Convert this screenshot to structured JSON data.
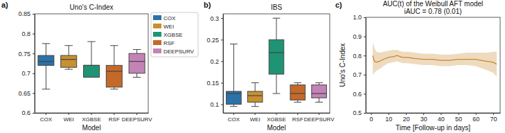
{
  "chart_data": [
    {
      "type": "box",
      "panel_label": "a)",
      "title": "Uno's C-Index",
      "x_label": "Model",
      "categories": [
        "COX",
        "WEI",
        "XGBSE",
        "RSF",
        "DEEPSURV"
      ],
      "colors": [
        "#2a72a8",
        "#c89030",
        "#1e9474",
        "#c4692a",
        "#c383b5"
      ],
      "whisker_low": [
        0.66,
        0.71,
        0.69,
        0.66,
        0.69
      ],
      "q1": [
        0.72,
        0.715,
        0.69,
        0.665,
        0.7
      ],
      "median": [
        0.73,
        0.735,
        0.72,
        0.705,
        0.73
      ],
      "q3": [
        0.745,
        0.745,
        0.72,
        0.72,
        0.75
      ],
      "whisker_high": [
        0.775,
        0.77,
        0.78,
        0.77,
        0.76
      ],
      "ylim": [
        0.6,
        0.85
      ],
      "yticks": [
        0.6,
        0.65,
        0.7,
        0.75,
        0.8,
        0.85
      ],
      "legend": "upper right"
    },
    {
      "type": "box",
      "panel_label": "b)",
      "title": "IBS",
      "x_label": "Model",
      "categories": [
        "COX",
        "WEI",
        "XGBSE",
        "RSF",
        "DEEPSURV"
      ],
      "colors": [
        "#2a72a8",
        "#c89030",
        "#1e9474",
        "#c4692a",
        "#c383b5"
      ],
      "whisker_low": [
        0.095,
        0.095,
        0.125,
        0.105,
        0.105
      ],
      "q1": [
        0.1,
        0.105,
        0.17,
        0.11,
        0.115
      ],
      "median": [
        0.125,
        0.12,
        0.22,
        0.125,
        0.125
      ],
      "q3": [
        0.13,
        0.13,
        0.25,
        0.145,
        0.145
      ],
      "whisker_high": [
        0.24,
        0.15,
        0.3,
        0.15,
        0.15
      ],
      "ylim": [
        0.08,
        0.31
      ],
      "yticks": [
        0.1,
        0.15,
        0.2,
        0.25,
        0.3
      ]
    },
    {
      "type": "line",
      "panel_label": "c)",
      "title": "AUC(t) of the Weibull AFT model",
      "subtitle": "iAUC = 0.78 (0.01)",
      "x_label": "Time [Follow-up in days]",
      "y_label": "Uno's C-Index",
      "x": [
        1,
        2,
        3,
        5,
        7,
        10,
        13,
        15,
        18,
        21,
        25,
        30,
        35,
        40,
        45,
        50,
        55,
        60,
        63,
        66,
        70,
        72
      ],
      "series": [
        {
          "color": "#c8872a",
          "values": [
            0.8,
            0.77,
            0.765,
            0.77,
            0.78,
            0.79,
            0.795,
            0.8,
            0.79,
            0.79,
            0.785,
            0.78,
            0.78,
            0.775,
            0.775,
            0.78,
            0.78,
            0.78,
            0.775,
            0.77,
            0.765,
            0.755
          ],
          "lower": [
            0.7,
            0.71,
            0.72,
            0.73,
            0.745,
            0.76,
            0.765,
            0.77,
            0.76,
            0.76,
            0.755,
            0.75,
            0.75,
            0.745,
            0.745,
            0.75,
            0.75,
            0.745,
            0.735,
            0.725,
            0.71,
            0.69
          ],
          "upper": [
            0.87,
            0.84,
            0.82,
            0.815,
            0.82,
            0.825,
            0.83,
            0.83,
            0.82,
            0.82,
            0.815,
            0.81,
            0.81,
            0.805,
            0.805,
            0.81,
            0.815,
            0.815,
            0.815,
            0.815,
            0.82,
            0.82
          ]
        }
      ],
      "xlim": [
        -3,
        74
      ],
      "xticks": [
        0,
        10,
        20,
        30,
        40,
        50,
        60,
        70
      ],
      "ylim": [
        0.5,
        1.0
      ],
      "yticks": [
        0.5,
        0.6,
        0.7,
        0.8,
        0.9,
        {
          "value": 1,
          "label": "1.0"
        }
      ]
    }
  ]
}
